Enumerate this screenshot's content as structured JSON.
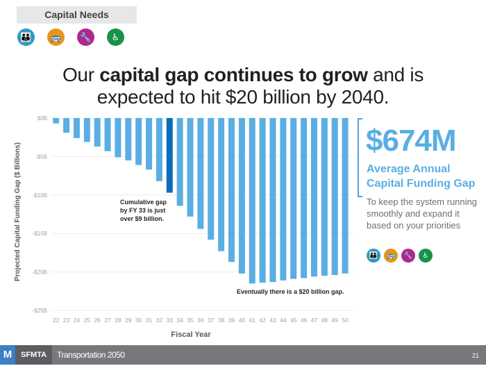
{
  "header": {
    "section_label": "Capital Needs",
    "icons": [
      {
        "name": "people-icon",
        "glyph": "👪",
        "color": "#2a9ac4"
      },
      {
        "name": "transit-icon",
        "glyph": "🚌",
        "color": "#e8951b"
      },
      {
        "name": "wrench-icon",
        "glyph": "🔧",
        "color": "#b0268f"
      },
      {
        "name": "accessibility-icon",
        "glyph": "♿",
        "color": "#16934a"
      }
    ]
  },
  "headline": {
    "pre": "Our ",
    "bold": "capital gap continues to grow",
    "post": " and is",
    "line2": "expected to hit $20 billion by 2040."
  },
  "chart_data": {
    "type": "bar",
    "title": "",
    "xlabel": "Fiscal Year",
    "ylabel": "Projected Capital Funding Gap ($ Billions)",
    "ylim": [
      -25,
      0
    ],
    "yticks": [
      0,
      -5,
      -10,
      -15,
      -20,
      -25
    ],
    "ytick_labels": [
      "$0B",
      "-$5B",
      "-$10B",
      "-$15B",
      "-$20B",
      "-$25B"
    ],
    "grid": true,
    "categories": [
      "22",
      "23",
      "24",
      "25",
      "26",
      "27",
      "28",
      "29",
      "30",
      "31",
      "32",
      "33",
      "34",
      "35",
      "36",
      "37",
      "38",
      "39",
      "40",
      "41",
      "42",
      "43",
      "44",
      "45",
      "46",
      "47",
      "48",
      "49",
      "50"
    ],
    "values": [
      -0.7,
      -1.9,
      -2.6,
      -3.1,
      -3.7,
      -4.3,
      -5.1,
      -5.5,
      -6.1,
      -6.7,
      -8.2,
      -9.7,
      -11.4,
      -12.8,
      -14.4,
      -15.8,
      -17.3,
      -18.7,
      -20.2,
      -21.5,
      -21.4,
      -21.3,
      -21.1,
      -20.9,
      -20.8,
      -20.6,
      -20.5,
      -20.4,
      -20.2
    ],
    "highlight_category": "33",
    "bar_color": "#5aaee3",
    "highlight_color": "#0a6ebd",
    "annotations": [
      {
        "text_lines": [
          "Cumulative gap",
          "by FY 33 is just",
          "over $9 billion."
        ],
        "anchor_category": "29"
      },
      {
        "text_lines": [
          "Eventually there is a $20 billion gap."
        ],
        "anchor_category": "40"
      }
    ]
  },
  "side_panel": {
    "amount": "$674M",
    "subtitle_lines": [
      "Average Annual",
      "Capital Funding Gap"
    ],
    "description": "To keep the system running smoothly and expand it based on your priorities"
  },
  "footer": {
    "logo_glyph": "M",
    "brand": "SFMTA",
    "program": "Transportation 2050",
    "page_number": "21"
  }
}
